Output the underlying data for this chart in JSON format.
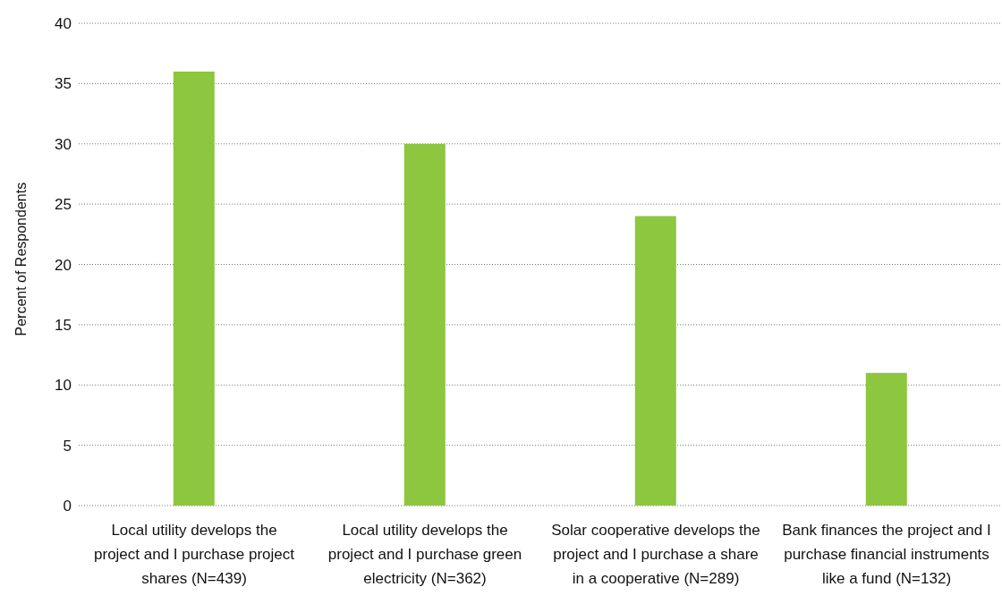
{
  "chart_data": {
    "type": "bar",
    "ylabel": "Percent of Respondents",
    "categories": [
      "Local utility develops the project and I purchase project shares (N=439)",
      "Local utility develops the project and I purchase green electricity (N=362)",
      "Solar cooperative develops the project and I purchase a share in a cooperative (N=289)",
      "Bank finances the project and I purchase financial instruments like a fund (N=132)"
    ],
    "values": [
      36,
      30,
      24,
      11
    ],
    "color": "#8dc63f",
    "ylim": [
      0,
      40
    ],
    "yticks": [
      0,
      5,
      10,
      15,
      20,
      25,
      30,
      35,
      40
    ],
    "grid": "y",
    "legend": false
  }
}
